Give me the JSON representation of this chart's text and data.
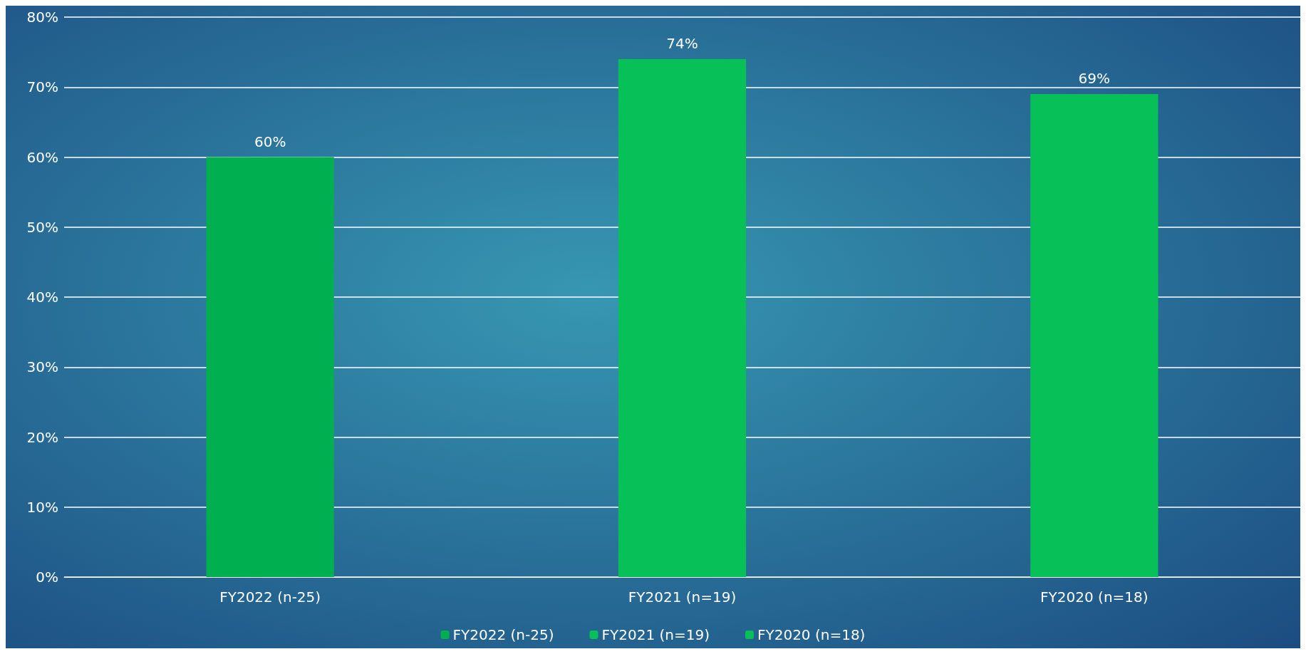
{
  "chart_data": {
    "type": "bar",
    "categories": [
      "FY2022 (n-25)",
      "FY2021 (n=19)",
      "FY2020 (n=18)"
    ],
    "series": [
      {
        "name": "FY2022 (n-25)",
        "color": "#00b050",
        "values": [
          60,
          null,
          null
        ],
        "value_labels": [
          "60%",
          null,
          null
        ]
      },
      {
        "name": "FY2021 (n=19)",
        "color": "#07c158",
        "values": [
          null,
          74,
          null
        ],
        "value_labels": [
          null,
          "74%",
          null
        ]
      },
      {
        "name": "FY2020 (n=18)",
        "color": "#07c158",
        "values": [
          null,
          null,
          69
        ],
        "value_labels": [
          null,
          null,
          "69%"
        ]
      }
    ],
    "ylim": [
      0,
      80
    ],
    "yticks": [
      {
        "value": 0,
        "label": "0%"
      },
      {
        "value": 10,
        "label": "10%"
      },
      {
        "value": 20,
        "label": "20%"
      },
      {
        "value": 30,
        "label": "30%"
      },
      {
        "value": 40,
        "label": "40%"
      },
      {
        "value": 50,
        "label": "50%"
      },
      {
        "value": 60,
        "label": "60%"
      },
      {
        "value": 70,
        "label": "70%"
      },
      {
        "value": 80,
        "label": "80%"
      }
    ],
    "grid": "y",
    "legend": "bottom"
  }
}
